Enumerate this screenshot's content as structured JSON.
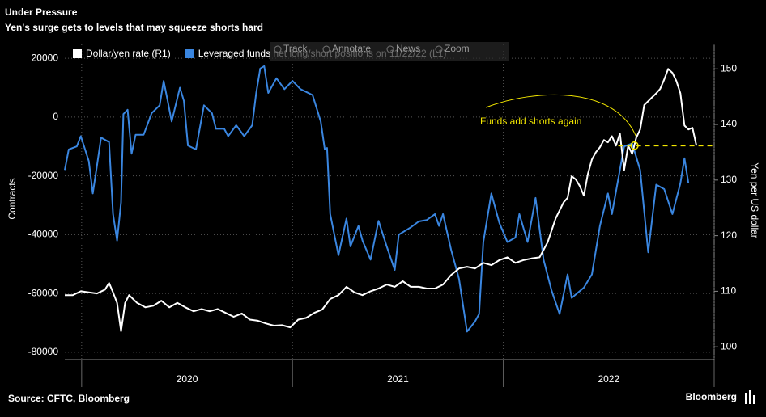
{
  "chart_data": {
    "type": "line",
    "title": "Under Pressure",
    "subtitle": "Yen's surge gets to levels that may squeeze shorts hard",
    "source": "Source: CFTC, Bloomberg",
    "brand": "Bloomberg",
    "toolbar": [
      "Track",
      "Annotate",
      "News",
      "Zoom"
    ],
    "y_label": "Contracts",
    "y2_label": "Yen per US dollar",
    "annotation": "Funds add shorts again",
    "reference_line": {
      "x": 2022.622,
      "y": 136.2,
      "axis": "y2",
      "color": "#f2e600"
    },
    "xlim": [
      2019.92,
      2023.0
    ],
    "xticks": [
      2020,
      2021,
      2022,
      2023
    ],
    "x_labels": [
      {
        "value": 2020.5,
        "label": "2020"
      },
      {
        "value": 2021.5,
        "label": "2021"
      },
      {
        "value": 2022.5,
        "label": "2022"
      }
    ],
    "ylim": [
      -82500,
      24700
    ],
    "yticks": [
      20000,
      0,
      -20000,
      -40000,
      -60000,
      -80000
    ],
    "y2lim": [
      97.7,
      154.4
    ],
    "y2ticks": [
      100,
      110,
      120,
      130,
      140,
      150
    ],
    "grid": true,
    "legend": "top-left",
    "series": [
      {
        "name": "Dollar/yen rate (R1)",
        "color": "#ffffff",
        "axis": "y2",
        "x": [
          2019.92,
          2019.958,
          2019.996,
          2020.034,
          2020.073,
          2020.111,
          2020.13,
          2020.149,
          2020.168,
          2020.187,
          2020.206,
          2020.225,
          2020.263,
          2020.302,
          2020.34,
          2020.378,
          2020.416,
          2020.454,
          2020.492,
          2020.531,
          2020.569,
          2020.607,
          2020.645,
          2020.683,
          2020.721,
          2020.76,
          2020.798,
          2020.836,
          2020.874,
          2020.912,
          2020.95,
          2020.989,
          2021.027,
          2021.065,
          2021.103,
          2021.141,
          2021.179,
          2021.218,
          2021.256,
          2021.294,
          2021.332,
          2021.37,
          2021.408,
          2021.447,
          2021.485,
          2021.523,
          2021.561,
          2021.599,
          2021.637,
          2021.676,
          2021.714,
          2021.752,
          2021.79,
          2021.828,
          2021.866,
          2021.905,
          2021.943,
          2021.981,
          2022.019,
          2022.057,
          2022.095,
          2022.134,
          2022.172,
          2022.21,
          2022.248,
          2022.286,
          2022.305,
          2022.324,
          2022.344,
          2022.363,
          2022.382,
          2022.401,
          2022.42,
          2022.439,
          2022.458,
          2022.477,
          2022.496,
          2022.515,
          2022.534,
          2022.553,
          2022.573,
          2022.592,
          2022.611,
          2022.63,
          2022.649,
          2022.668,
          2022.687,
          2022.706,
          2022.725,
          2022.744,
          2022.763,
          2022.782,
          2022.802,
          2022.821,
          2022.84,
          2022.859,
          2022.878,
          2022.897,
          2022.916
        ],
        "values": [
          109.3,
          109.3,
          110.0,
          109.8,
          109.6,
          110.3,
          111.5,
          109.8,
          107.9,
          102.8,
          107.9,
          109.3,
          107.9,
          107.1,
          107.4,
          108.3,
          107.1,
          107.9,
          107.1,
          106.4,
          106.8,
          106.4,
          106.8,
          106.1,
          105.4,
          106.0,
          104.9,
          104.7,
          104.2,
          103.8,
          103.9,
          103.5,
          104.9,
          105.2,
          106.1,
          106.7,
          108.6,
          109.3,
          110.8,
          109.8,
          109.3,
          110.0,
          110.5,
          111.2,
          110.8,
          111.8,
          110.8,
          110.8,
          110.5,
          110.5,
          111.2,
          112.9,
          114.1,
          114.4,
          114.1,
          115.1,
          114.7,
          115.6,
          116.1,
          115.1,
          115.6,
          115.9,
          116.1,
          118.8,
          123.1,
          126.0,
          126.8,
          130.7,
          130.1,
          128.9,
          127.2,
          131.1,
          133.7,
          135.0,
          135.9,
          137.2,
          136.8,
          137.9,
          136.2,
          138.4,
          131.8,
          136.2,
          134.7,
          137.6,
          139.1,
          143.5,
          144.2,
          144.9,
          145.6,
          146.4,
          148.1,
          150.0,
          149.3,
          147.8,
          145.6,
          139.8,
          139.1,
          139.4,
          136.2
        ]
      },
      {
        "name": "Leveraged funds net long/short positions on 11/22/22 (L1)",
        "color": "#3a86e0",
        "axis": "y",
        "x": [
          2019.92,
          2019.939,
          2019.977,
          2019.996,
          2020.034,
          2020.053,
          2020.073,
          2020.092,
          2020.13,
          2020.149,
          2020.168,
          2020.187,
          2020.198,
          2020.218,
          2020.237,
          2020.256,
          2020.294,
          2020.332,
          2020.37,
          2020.389,
          2020.408,
          2020.427,
          2020.466,
          2020.485,
          2020.504,
          2020.542,
          2020.58,
          2020.618,
          2020.637,
          2020.676,
          2020.695,
          2020.733,
          2020.771,
          2020.809,
          2020.828,
          2020.847,
          2020.866,
          2020.885,
          2020.924,
          2020.962,
          2021.0,
          2021.038,
          2021.095,
          2021.134,
          2021.153,
          2021.164,
          2021.179,
          2021.218,
          2021.256,
          2021.275,
          2021.313,
          2021.332,
          2021.37,
          2021.408,
          2021.447,
          2021.485,
          2021.504,
          2021.561,
          2021.599,
          2021.637,
          2021.676,
          2021.695,
          2021.714,
          2021.752,
          2021.79,
          2021.828,
          2021.866,
          2021.885,
          2021.905,
          2021.943,
          2021.981,
          2022.019,
          2022.057,
          2022.076,
          2022.115,
          2022.153,
          2022.191,
          2022.229,
          2022.267,
          2022.305,
          2022.324,
          2022.382,
          2022.42,
          2022.458,
          2022.496,
          2022.515,
          2022.573,
          2022.611,
          2022.649,
          2022.687,
          2022.725,
          2022.763,
          2022.802,
          2022.84,
          2022.859,
          2022.878
        ],
        "values": [
          -18000,
          -11000,
          -10000,
          -6500,
          -15000,
          -26000,
          -16500,
          -7000,
          -8500,
          -33000,
          -42000,
          -29000,
          1000,
          2500,
          -12500,
          -6000,
          -6000,
          1300,
          4000,
          12300,
          5500,
          -1500,
          10000,
          5500,
          -9700,
          -11000,
          4000,
          1300,
          -4000,
          -4000,
          -6500,
          -2800,
          -6500,
          -2800,
          8200,
          16500,
          17300,
          8200,
          13200,
          9500,
          12300,
          9500,
          7500,
          -1500,
          -11000,
          -10500,
          -33000,
          -47000,
          -34500,
          -44000,
          -37000,
          -42000,
          -48500,
          -35300,
          -44000,
          -52000,
          -40000,
          -37500,
          -35500,
          -35000,
          -33000,
          -37000,
          -33000,
          -45000,
          -55000,
          -73000,
          -69500,
          -67000,
          -42500,
          -26000,
          -36000,
          -42500,
          -41000,
          -33000,
          -42500,
          -27500,
          -48500,
          -59000,
          -67000,
          -53500,
          -61500,
          -58000,
          -53500,
          -37000,
          -26000,
          -33000,
          -10000,
          -9000,
          -18000,
          -46000,
          -23000,
          -24500,
          -33000,
          -22500,
          -14000,
          -22500
        ]
      }
    ]
  }
}
